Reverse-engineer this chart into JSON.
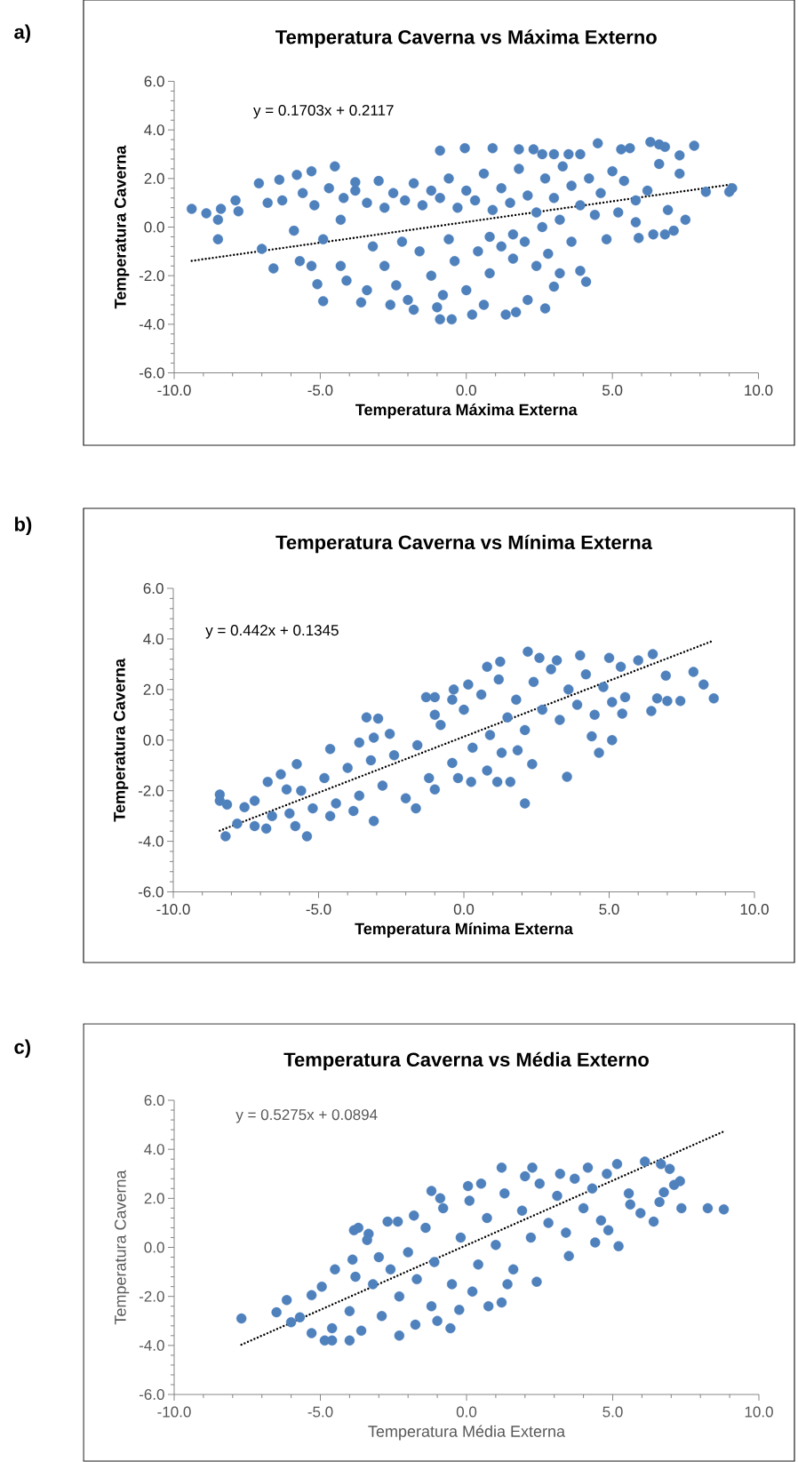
{
  "chart_data": [
    {
      "type": "scatter",
      "title": "Temperatura Caverna vs Máxima Externo",
      "xlabel": "Temperatura Máxima Externa",
      "ylabel": "Temperatura Caverna",
      "annotations": [
        "a)",
        "y = 0.1703x + 0.2117"
      ],
      "xlim": [
        -10,
        10
      ],
      "ylim": [
        -6,
        6
      ],
      "xticks": [
        {
          "value": -10,
          "label": "-10.0"
        },
        {
          "value": -5,
          "label": "-5.0"
        },
        {
          "value": 0,
          "label": "0.0"
        },
        {
          "value": 5,
          "label": "5.0"
        },
        {
          "value": 10,
          "label": "10.0"
        }
      ],
      "yticks": [
        {
          "value": -6,
          "label": "-6.0"
        },
        {
          "value": -4,
          "label": "-4.0"
        },
        {
          "value": -2,
          "label": "-2.0"
        },
        {
          "value": 0,
          "label": "0.0"
        },
        {
          "value": 2,
          "label": "2.0"
        },
        {
          "value": 4,
          "label": "4.0"
        },
        {
          "value": 6,
          "label": "6.0"
        }
      ],
      "series": [
        {
          "color": "#4f81bd",
          "marker": "circle",
          "x": [
            -9.4,
            -8.9,
            -8.4,
            -8.5,
            -8.5,
            -7.9,
            -7.8,
            -7.1,
            -7.0,
            -6.8,
            -6.6,
            -6.4,
            -6.3,
            -5.9,
            -5.8,
            -5.7,
            -5.3,
            -5.3,
            -5.1,
            -4.9,
            -4.9,
            -4.5,
            -4.3,
            -4.3,
            -4.1,
            -3.6,
            -3.8,
            -0.9,
            -0.5,
            0.2,
            1.35,
            1.7,
            2.1,
            2.7,
            3.0,
            4.1,
            3.9,
            4.8,
            5.9,
            6.4,
            6.8,
            7.1,
            7.5,
            7.8,
            8.2,
            9.0,
            9.1,
            7.3,
            7.3,
            6.3,
            6.6,
            6.8,
            4.5,
            5.3,
            5.6,
            3.9,
            0.9,
            -0.05,
            -0.9,
            1.8,
            2.3,
            2.6,
            3.0,
            3.5,
            -5.6,
            -5.2,
            -4.7,
            -4.2,
            -3.8,
            -3.4,
            -3.0,
            -2.8,
            -2.5,
            -2.1,
            -1.8,
            -1.5,
            -1.2,
            -0.9,
            -0.6,
            -0.3,
            0.0,
            0.3,
            0.6,
            0.9,
            1.2,
            1.5,
            1.8,
            2.1,
            2.4,
            2.7,
            3.0,
            3.3,
            3.6,
            3.9,
            4.2,
            4.6,
            5.0,
            5.4,
            5.8,
            6.2,
            6.6,
            4.4,
            5.2,
            5.8,
            6.9,
            3.2,
            2.6,
            1.6,
            -3.2,
            -2.8,
            -2.4,
            -2.0,
            -1.6,
            -1.2,
            -0.8,
            -0.4,
            0.0,
            0.4,
            0.8,
            1.2,
            1.6,
            2.0,
            2.4,
            2.8,
            3.2,
            3.6,
            -2.6,
            -1.8,
            -1.0,
            0.6,
            -3.4,
            -2.2,
            -0.6,
            0.8
          ],
          "values": [
            0.75,
            0.57,
            0.75,
            0.3,
            -0.5,
            1.1,
            0.65,
            1.8,
            -0.9,
            1.0,
            -1.7,
            1.95,
            1.1,
            -0.15,
            2.15,
            -1.4,
            2.3,
            -1.6,
            -2.35,
            -3.05,
            -0.5,
            2.5,
            -1.6,
            0.3,
            -2.2,
            -3.1,
            1.85,
            -3.8,
            -3.8,
            -3.6,
            -3.6,
            -3.5,
            -3.0,
            -3.35,
            -2.45,
            -2.25,
            -1.8,
            -0.5,
            -0.45,
            -0.3,
            -0.3,
            -0.15,
            0.3,
            3.35,
            1.45,
            1.45,
            1.6,
            2.95,
            2.2,
            3.5,
            3.4,
            3.3,
            3.45,
            3.2,
            3.25,
            3.0,
            3.25,
            3.25,
            3.15,
            3.2,
            3.2,
            3.0,
            3.0,
            3.0,
            1.4,
            0.9,
            1.6,
            1.2,
            1.5,
            1.0,
            1.9,
            0.8,
            1.4,
            1.1,
            1.8,
            0.9,
            1.5,
            1.2,
            2.0,
            0.8,
            1.5,
            1.1,
            2.2,
            0.7,
            1.6,
            1.0,
            2.4,
            1.3,
            0.6,
            2.0,
            1.2,
            2.5,
            1.7,
            0.9,
            2.0,
            1.4,
            2.3,
            1.9,
            1.1,
            1.5,
            2.6,
            0.5,
            0.6,
            0.2,
            0.7,
            0.3,
            0.0,
            -0.3,
            -0.8,
            -1.6,
            -2.4,
            -3.0,
            -1.0,
            -2.0,
            -2.8,
            -1.4,
            -2.6,
            -1.0,
            -1.9,
            -0.8,
            -1.3,
            -0.6,
            -1.6,
            -1.1,
            -1.9,
            -0.6,
            -3.2,
            -3.4,
            -3.3,
            -3.2,
            -2.6,
            -0.6,
            -0.5,
            -0.4
          ]
        },
        {
          "type": "line",
          "color": "#000000",
          "marker": "none",
          "line_style": "dotted",
          "x": [
            -9.4,
            9.1
          ],
          "values": [
            -1.39,
            1.76
          ]
        }
      ]
    },
    {
      "type": "scatter",
      "title": "Temperatura Caverna vs Mínima Externa",
      "xlabel": "Temperatura Mínima Externa",
      "ylabel": "Temperatura Caverna",
      "annotations": [
        "b)",
        "y = 0.442x + 0.1345"
      ],
      "xlim": [
        -10,
        10
      ],
      "ylim": [
        -6,
        6
      ],
      "xticks": [
        {
          "value": -10,
          "label": "-10.0"
        },
        {
          "value": -5,
          "label": "-5.0"
        },
        {
          "value": 0,
          "label": "0.0"
        },
        {
          "value": 5,
          "label": "5.0"
        },
        {
          "value": 10,
          "label": "10.0"
        }
      ],
      "yticks": [
        {
          "value": -6,
          "label": "-6.0"
        },
        {
          "value": -4,
          "label": "-4.0"
        },
        {
          "value": -2,
          "label": "-2.0"
        },
        {
          "value": 0,
          "label": "0.0"
        },
        {
          "value": 2,
          "label": "2.0"
        },
        {
          "value": 4,
          "label": "4.0"
        },
        {
          "value": 6,
          "label": "6.0"
        }
      ],
      "series": [
        {
          "color": "#4f81bd",
          "marker": "circle",
          "x": [
            -8.4,
            -8.4,
            -8.2,
            -8.15,
            -7.55,
            -7.2,
            -6.75,
            -6.3,
            -6.1,
            -5.75,
            -5.4,
            -4.6,
            -3.6,
            -3.35,
            -2.95,
            -3.1,
            -2.55,
            -3.1,
            -1.65,
            -1.3,
            -1.0,
            -1.0,
            -0.35,
            0.15,
            0.8,
            1.25,
            2.2,
            2.6,
            3.2,
            4.0,
            5.0,
            5.4,
            6.0,
            6.5,
            6.95,
            7.9,
            8.25,
            8.6,
            7.45,
            7.0,
            6.65,
            6.45,
            5.55,
            5.45,
            5.1,
            4.4,
            4.65,
            3.55,
            2.1,
            2.35,
            1.6,
            1.15,
            1.85,
            1.3,
            0.25,
            -7.8,
            -7.2,
            -6.6,
            -6.0,
            -5.6,
            -5.2,
            -4.8,
            -4.4,
            -4.0,
            -3.6,
            -3.2,
            -2.8,
            -2.4,
            -2.0,
            -1.6,
            -1.2,
            -0.8,
            -0.4,
            0.0,
            0.3,
            0.6,
            0.9,
            1.2,
            1.5,
            1.8,
            2.1,
            2.4,
            2.7,
            3.0,
            3.3,
            3.6,
            3.9,
            4.2,
            4.5,
            4.8,
            5.1,
            -0.4,
            -1.0,
            -4.6,
            -3.8,
            0.8,
            -0.2,
            -5.8,
            -6.8
          ],
          "values": [
            -2.15,
            -2.4,
            -3.8,
            -2.55,
            -2.65,
            -2.4,
            -1.65,
            -1.35,
            -1.95,
            -0.95,
            -3.8,
            -0.35,
            -0.1,
            0.9,
            0.85,
            0.1,
            0.25,
            -3.2,
            -2.7,
            1.7,
            1.7,
            -1.95,
            2.0,
            2.2,
            2.9,
            3.1,
            3.5,
            3.25,
            3.15,
            3.35,
            3.25,
            2.9,
            3.15,
            3.4,
            2.55,
            2.7,
            2.2,
            1.65,
            1.55,
            1.55,
            1.65,
            1.15,
            1.7,
            1.05,
            0.0,
            0.15,
            -0.5,
            -1.45,
            -2.5,
            -0.95,
            -1.65,
            -1.65,
            -0.4,
            -0.5,
            -1.65,
            -3.3,
            -3.4,
            -3.0,
            -2.9,
            -2.0,
            -2.7,
            -1.5,
            -2.5,
            -1.1,
            -2.2,
            -0.8,
            -1.8,
            -0.6,
            -2.3,
            -0.2,
            -1.5,
            0.6,
            -0.9,
            1.2,
            -0.3,
            1.8,
            0.2,
            2.4,
            0.9,
            1.6,
            0.4,
            2.3,
            1.2,
            2.8,
            0.8,
            2.0,
            1.4,
            2.6,
            1.0,
            2.1,
            1.5,
            1.6,
            1.0,
            -3.0,
            -2.8,
            -1.2,
            -1.5,
            -3.4,
            -3.5
          ]
        },
        {
          "type": "line",
          "color": "#000000",
          "marker": "none",
          "line_style": "dotted",
          "x": [
            -8.4,
            8.6
          ],
          "values": [
            -3.58,
            3.94
          ]
        }
      ]
    },
    {
      "type": "scatter",
      "title": "Temperatura Caverna vs Média Externo",
      "xlabel": "Temperatura Média Externa",
      "ylabel": "Temperatura Caverna",
      "annotations": [
        "c)",
        "y = 0.5275x + 0.0894"
      ],
      "xlim": [
        -10,
        10
      ],
      "ylim": [
        -6,
        6
      ],
      "xticks": [
        {
          "value": -10,
          "label": "-10.0"
        },
        {
          "value": -5,
          "label": "-5.0"
        },
        {
          "value": 0,
          "label": "0.0"
        },
        {
          "value": 5,
          "label": "5.0"
        },
        {
          "value": 10,
          "label": "10.0"
        }
      ],
      "yticks": [
        {
          "value": -6,
          "label": "-6.0"
        },
        {
          "value": -4,
          "label": "-4.0"
        },
        {
          "value": -2,
          "label": "-2.0"
        },
        {
          "value": 0,
          "label": "0.0"
        },
        {
          "value": 2,
          "label": "2.0"
        },
        {
          "value": 4,
          "label": "4.0"
        },
        {
          "value": 6,
          "label": "6.0"
        }
      ],
      "series": [
        {
          "color": "#4f81bd",
          "marker": "circle",
          "x": [
            -7.7,
            -6.5,
            -6.15,
            -6.0,
            -5.7,
            -5.3,
            -5.3,
            -4.95,
            -4.85,
            -4.6,
            -4.5,
            -4.0,
            -3.85,
            -3.7,
            -3.35,
            -3.4,
            -3.9,
            -2.7,
            -2.35,
            -2.3,
            -1.75,
            -1.2,
            -1.0,
            -0.55,
            -0.25,
            0.05,
            0.75,
            1.2,
            1.2,
            2.25,
            2.4,
            3.5,
            4.15,
            4.8,
            5.15,
            5.2,
            4.85,
            4.4,
            5.55,
            5.6,
            5.95,
            6.1,
            6.4,
            6.6,
            6.75,
            6.65,
            6.95,
            7.1,
            7.3,
            7.35,
            8.25,
            8.8,
            -4.6,
            -4.0,
            -3.6,
            -3.2,
            -2.9,
            -2.6,
            -2.3,
            -2.0,
            -1.7,
            -1.4,
            -1.1,
            -0.8,
            -0.5,
            -0.2,
            0.1,
            0.4,
            0.7,
            1.0,
            1.3,
            1.6,
            1.9,
            2.2,
            2.5,
            2.8,
            3.1,
            3.4,
            3.7,
            4.0,
            4.3,
            4.6,
            -1.8,
            -0.9,
            0.5,
            -3.0,
            -3.8,
            -1.2,
            0.2,
            1.4,
            2.0,
            3.2
          ],
          "values": [
            -2.9,
            -2.65,
            -2.15,
            -3.05,
            -2.85,
            -3.5,
            -1.95,
            -1.6,
            -3.8,
            -3.8,
            -0.9,
            -3.8,
            0.7,
            0.8,
            0.55,
            0.3,
            -0.5,
            1.05,
            1.05,
            -3.6,
            -3.15,
            2.3,
            -3.0,
            -3.3,
            -2.55,
            2.5,
            -2.4,
            -2.25,
            3.25,
            3.25,
            -1.4,
            -0.35,
            3.25,
            3.0,
            3.4,
            0.05,
            0.7,
            0.2,
            2.2,
            1.75,
            1.4,
            3.5,
            1.05,
            1.85,
            2.25,
            3.4,
            3.2,
            2.55,
            2.7,
            1.6,
            1.6,
            1.55,
            -3.3,
            -2.6,
            -3.4,
            -1.5,
            -2.8,
            -0.9,
            -2.0,
            -0.2,
            -1.3,
            0.8,
            -0.6,
            1.6,
            -1.5,
            0.4,
            1.9,
            -0.7,
            1.2,
            0.1,
            2.2,
            -0.9,
            1.5,
            0.4,
            2.6,
            1.0,
            2.1,
            0.6,
            2.8,
            1.6,
            2.4,
            1.1,
            1.3,
            2.0,
            2.6,
            -0.4,
            -1.2,
            -2.4,
            -1.8,
            -1.5,
            2.9,
            3.0
          ]
        },
        {
          "type": "line",
          "color": "#000000",
          "marker": "none",
          "line_style": "dotted",
          "x": [
            -7.7,
            8.8
          ],
          "values": [
            -3.97,
            4.73
          ]
        }
      ]
    }
  ]
}
